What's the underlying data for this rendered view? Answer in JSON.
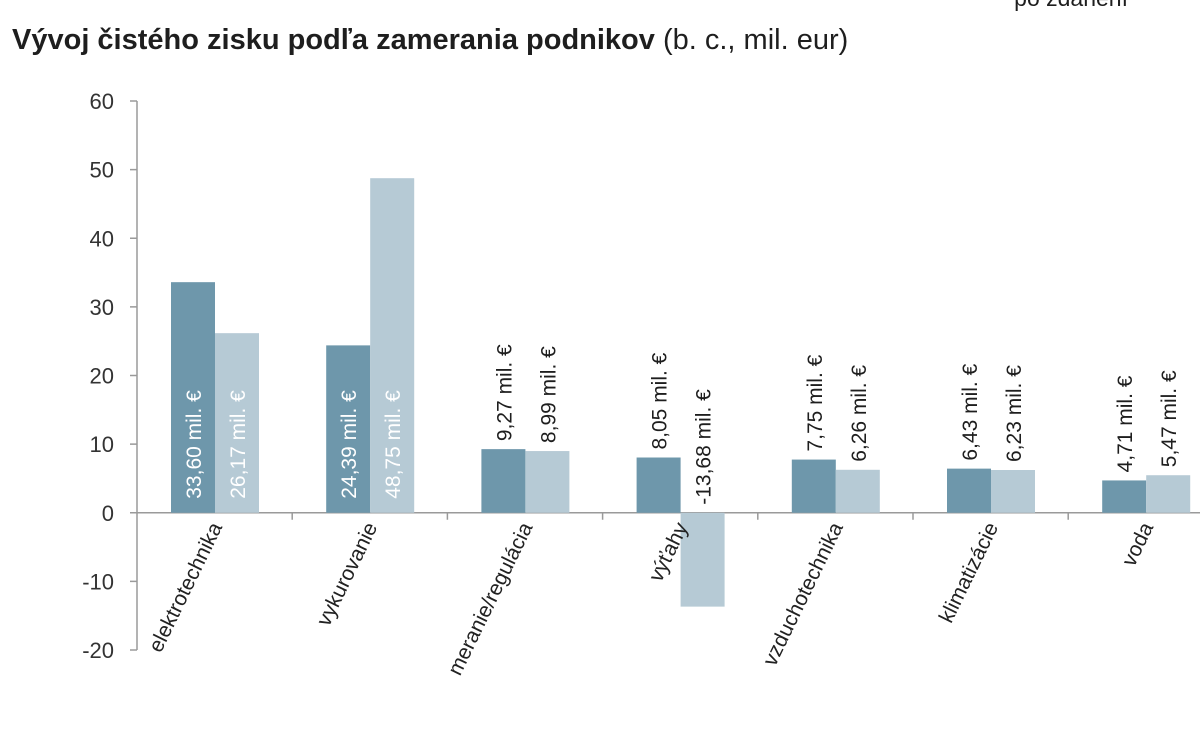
{
  "legend": {
    "text": "po zdanení"
  },
  "title": {
    "bold": "Vývoj čistého zisku podľa zamerania podnikov",
    "normal": " (b. c., mil. eur)"
  },
  "chart_data": {
    "type": "bar",
    "categories": [
      "elektrotechnika",
      "vykurovanie",
      "meranie/regulácia",
      "výťahy",
      "vzduchotechnika",
      "klimatizácie",
      "voda"
    ],
    "series": [
      {
        "values": [
          33.6,
          24.39,
          9.27,
          8.05,
          7.75,
          6.43,
          4.71
        ],
        "labels": [
          "33,60 mil. €",
          "24,39 mil. €",
          "9,27 mil. €",
          "8,05 mil. €",
          "7,75 mil. €",
          "6,43 mil. €",
          "4,71 mil. €"
        ],
        "color": "#6e97ab"
      },
      {
        "values": [
          26.17,
          48.75,
          8.99,
          -13.68,
          6.26,
          6.23,
          5.47
        ],
        "labels": [
          "26,17 mil. €",
          "48,75 mil. €",
          "8,99 mil. €",
          "-13,68 mil. €",
          "6,26 mil. €",
          "6,23 mil. €",
          "5,47 mil. €"
        ],
        "color": "#b6cad5"
      }
    ],
    "ylim": [
      -20,
      60
    ],
    "yticks": [
      "60",
      "50",
      "40",
      "30",
      "20",
      "10",
      "0",
      "-10",
      "-20"
    ],
    "grid": false,
    "label_color_inside": "#ffffff",
    "label_color_outside": "#1e1e1e",
    "axis_color": "#9a9a9a"
  }
}
